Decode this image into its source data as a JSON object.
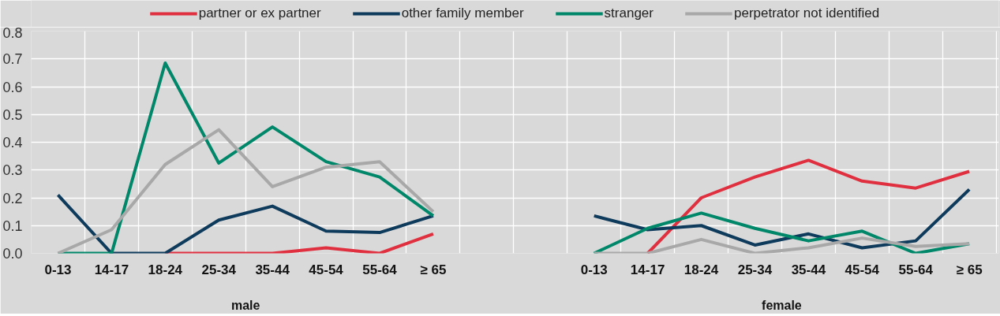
{
  "chart_data": {
    "type": "line",
    "categories": [
      "0-13",
      "14-17",
      "18-24",
      "25-34",
      "35-44",
      "45-54",
      "55-64",
      "≥ 65",
      null,
      null,
      "0-13",
      "14-17",
      "18-24",
      "25-34",
      "35-44",
      "45-54",
      "55-64",
      "≥ 65"
    ],
    "series": [
      {
        "name": "partner or ex partner",
        "color": "#e0303f",
        "values": [
          null,
          null,
          0,
          0,
          0,
          0.02,
          0,
          0.07,
          null,
          null,
          null,
          0,
          0.2,
          0.275,
          0.335,
          0.26,
          0.235,
          0.295
        ]
      },
      {
        "name": "other family member",
        "color": "#0e3a5c",
        "values": [
          0.21,
          0,
          0,
          0.12,
          0.17,
          0.08,
          0.075,
          0.135,
          null,
          null,
          0.135,
          0.085,
          0.1,
          0.03,
          0.07,
          0.02,
          0.045,
          0.23
        ]
      },
      {
        "name": "stranger",
        "color": "#00876a",
        "values": [
          0,
          0,
          0.685,
          0.325,
          0.455,
          0.33,
          0.275,
          0.135,
          null,
          null,
          0,
          0.09,
          0.145,
          0.09,
          0.045,
          0.08,
          0,
          0.035
        ]
      },
      {
        "name": "perpetrator not identified",
        "color": "#a8a8a8",
        "values": [
          0,
          0.085,
          0.32,
          0.445,
          0.24,
          0.31,
          0.33,
          0.15,
          null,
          null,
          0,
          0,
          0.05,
          0,
          0.02,
          0.055,
          0.025,
          0.035
        ]
      }
    ],
    "ylim": [
      0,
      0.8
    ],
    "yticks": [
      {
        "value": 0,
        "label": "0.0"
      },
      0.1,
      0.2,
      0.3,
      0.4,
      0.5,
      0.6,
      0.7,
      0.8
    ],
    "annotations": [
      "male",
      "female"
    ],
    "grid": true,
    "legend": "top",
    "marker": "none",
    "line_style": "solid"
  }
}
